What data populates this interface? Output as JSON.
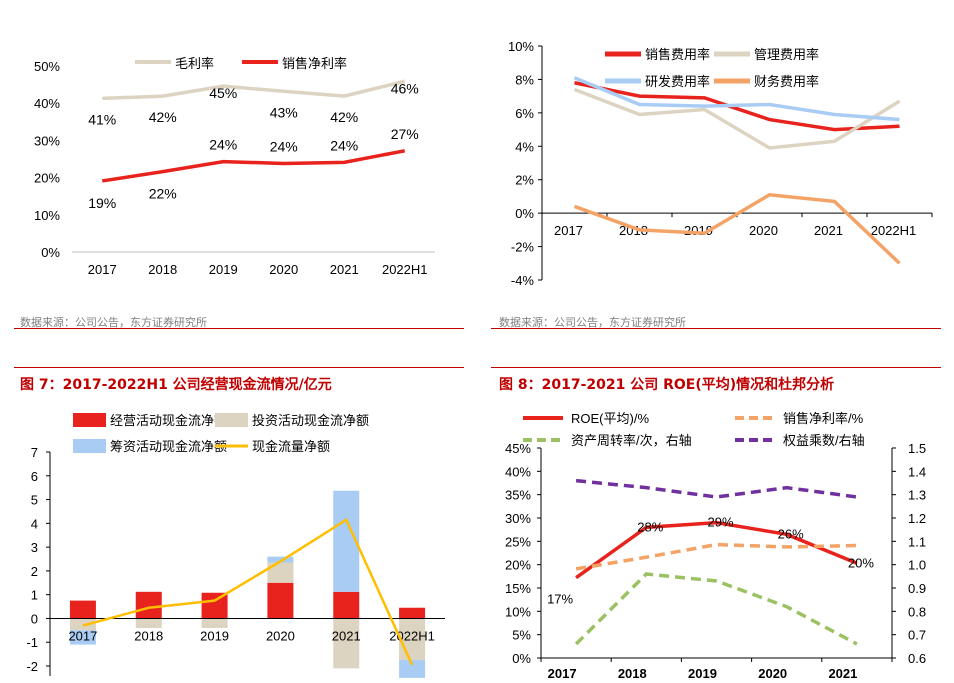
{
  "colors": {
    "red": "#e8221c",
    "beige": "#ddd3c1",
    "lightblue": "#a9ccf5",
    "orange": "#f4a367",
    "gold": "#ffbf00",
    "green": "#9bc163",
    "purple": "#7030a0",
    "accent": "#c00000"
  },
  "panels": {
    "p1": {
      "source": "数据来源：公司公告，东方证券研究所"
    },
    "p2": {
      "source": "数据来源：公司公告，东方证券研究所"
    },
    "p3": {
      "title": "图 7：2017-2022H1 公司经营现金流情况/亿元"
    },
    "p4": {
      "title": "图 8：2017-2021 公司 ROE(平均)情况和杜邦分析"
    }
  },
  "chart_data": [
    {
      "id": "margins",
      "type": "line",
      "categories": [
        "2017",
        "2018",
        "2019",
        "2020",
        "2021",
        "2022H1"
      ],
      "ylim": [
        0,
        50
      ],
      "yticks": [
        "0%",
        "10%",
        "20%",
        "30%",
        "40%",
        "50%"
      ],
      "legend_position": "top",
      "series": [
        {
          "name": "毛利率",
          "color": "#ddd3c1",
          "values": [
            41.3,
            41.9,
            44.6,
            43.2,
            41.9,
            45.9
          ],
          "labels": [
            "41%",
            "42%",
            "45%",
            "43%",
            "42%",
            "46%"
          ]
        },
        {
          "name": "销售净利率",
          "color": "#e8221c",
          "values": [
            19.1,
            21.6,
            24.3,
            23.8,
            24.1,
            27.2
          ],
          "labels": [
            "19%",
            "22%",
            "24%",
            "24%",
            "24%",
            "27%"
          ]
        }
      ]
    },
    {
      "id": "expense-ratios",
      "type": "line",
      "categories": [
        "2017",
        "2018",
        "2019",
        "2020",
        "2021",
        "2022H1"
      ],
      "ylim": [
        -4,
        10
      ],
      "yticks": [
        "-4%",
        "-2%",
        "0%",
        "2%",
        "4%",
        "6%",
        "8%",
        "10%"
      ],
      "legend_position": "top",
      "series": [
        {
          "name": "销售费用率",
          "color": "#e8221c",
          "values": [
            7.8,
            7.0,
            6.9,
            5.6,
            5.0,
            5.2
          ]
        },
        {
          "name": "管理费用率",
          "color": "#ddd3c1",
          "values": [
            7.4,
            5.9,
            6.2,
            3.9,
            4.3,
            6.7
          ]
        },
        {
          "name": "研发费用率",
          "color": "#a9ccf5",
          "values": [
            8.1,
            6.5,
            6.4,
            6.5,
            5.9,
            5.6
          ]
        },
        {
          "name": "财务费用率",
          "color": "#f4a367",
          "values": [
            0.4,
            -1.0,
            -1.2,
            1.1,
            0.7,
            -3.0
          ]
        }
      ]
    },
    {
      "id": "cash-flow",
      "type": "bar",
      "categories": [
        "2017",
        "2018",
        "2019",
        "2020",
        "2021",
        "2022H1"
      ],
      "ylim": [
        -2,
        7
      ],
      "yticks": [
        "-2",
        "-1",
        "0",
        "1",
        "2",
        "3",
        "4",
        "5",
        "6",
        "7"
      ],
      "legend_position": "top",
      "stacked": true,
      "series": [
        {
          "name": "经营活动现金流净额",
          "color": "#e8221c",
          "kind": "bar",
          "values": [
            0.75,
            1.12,
            1.08,
            1.5,
            1.12,
            0.45
          ]
        },
        {
          "name": "投资活动现金流净额",
          "color": "#ddd3c1",
          "kind": "bar",
          "values": [
            -0.5,
            -0.4,
            -0.4,
            0.85,
            -2.1,
            -1.75
          ]
        },
        {
          "name": "筹资活动现金流净额",
          "color": "#a9ccf5",
          "kind": "bar",
          "values": [
            -0.6,
            0.0,
            0.0,
            0.25,
            4.25,
            -0.75
          ]
        },
        {
          "name": "现金流量净额",
          "color": "#ffbf00",
          "kind": "line",
          "values": [
            -0.3,
            0.45,
            0.75,
            2.4,
            4.15,
            -1.95
          ]
        }
      ]
    },
    {
      "id": "roe-dupont",
      "type": "line",
      "categories": [
        "2017",
        "2018",
        "2019",
        "2020",
        "2021"
      ],
      "ylim": [
        0,
        45
      ],
      "yticks": [
        "0%",
        "5%",
        "10%",
        "15%",
        "20%",
        "25%",
        "30%",
        "35%",
        "40%",
        "45%"
      ],
      "y2lim": [
        0.6,
        1.5
      ],
      "y2ticks": [
        "0.6",
        "0.7",
        "0.8",
        "0.9",
        "1.0",
        "1.1",
        "1.2",
        "1.3",
        "1.4",
        "1.5"
      ],
      "legend_position": "top",
      "series": [
        {
          "name": "ROE(平均)/%",
          "color": "#e8221c",
          "axis": "left",
          "dash": false,
          "values": [
            17.2,
            28.0,
            29.0,
            26.5,
            20.3
          ],
          "labels": [
            "17%",
            "28%",
            "29%",
            "26%",
            "20%"
          ]
        },
        {
          "name": "销售净利率/%",
          "color": "#f4a367",
          "axis": "left",
          "dash": true,
          "values": [
            19.1,
            21.6,
            24.3,
            23.8,
            24.1
          ]
        },
        {
          "name": "资产周转率/次，右轴",
          "color": "#9bc163",
          "axis": "right",
          "dash": true,
          "values": [
            0.66,
            0.96,
            0.93,
            0.82,
            0.66
          ]
        },
        {
          "name": "权益乘数/右轴",
          "color": "#7030a0",
          "axis": "right",
          "dash": true,
          "values": [
            1.36,
            1.33,
            1.29,
            1.33,
            1.29
          ]
        }
      ]
    }
  ]
}
